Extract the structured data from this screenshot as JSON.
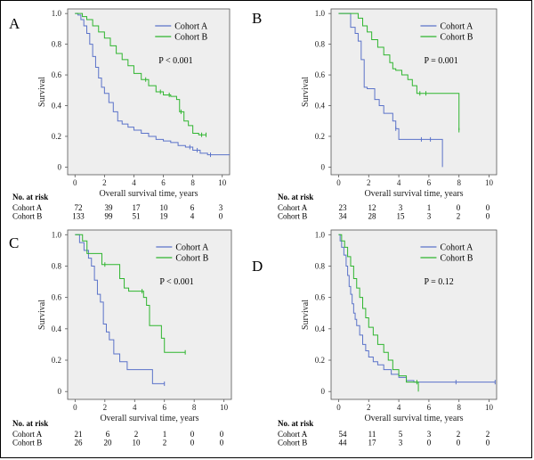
{
  "colors": {
    "cohort_a": "#5b73c9",
    "cohort_b": "#2fb52f",
    "plot_bg": "#eeeeee"
  },
  "risk_title": "No. at risk",
  "chart_data": [
    {
      "panel": "A",
      "type": "line",
      "xlabel": "Overall survival time, years",
      "ylabel": "Survival",
      "xlim": [
        -0.5,
        10.5
      ],
      "ylim": [
        -0.05,
        1.03
      ],
      "xticks": [
        0,
        2,
        4,
        6,
        8,
        10
      ],
      "yticks": [
        0,
        0.2,
        0.4,
        0.6,
        0.8,
        1.0
      ],
      "yticklabels": [
        "0",
        "0.2",
        "0.4",
        "0.6",
        "0.8",
        "1.0"
      ],
      "legend": [
        "Cohort A",
        "Cohort B"
      ],
      "pvalue": "P < 0.001",
      "series": [
        {
          "name": "Cohort A",
          "points": [
            [
              0,
              1
            ],
            [
              0.2,
              0.99
            ],
            [
              0.4,
              0.96
            ],
            [
              0.6,
              0.92
            ],
            [
              0.8,
              0.87
            ],
            [
              1.0,
              0.8
            ],
            [
              1.2,
              0.72
            ],
            [
              1.4,
              0.65
            ],
            [
              1.6,
              0.58
            ],
            [
              1.8,
              0.52
            ],
            [
              2.0,
              0.48
            ],
            [
              2.3,
              0.42
            ],
            [
              2.6,
              0.36
            ],
            [
              2.9,
              0.3
            ],
            [
              3.2,
              0.28
            ],
            [
              3.6,
              0.26
            ],
            [
              4.0,
              0.24
            ],
            [
              4.5,
              0.22
            ],
            [
              5.0,
              0.2
            ],
            [
              5.5,
              0.18
            ],
            [
              6.0,
              0.17
            ],
            [
              6.5,
              0.16
            ],
            [
              7.0,
              0.14
            ],
            [
              7.5,
              0.13
            ],
            [
              8.0,
              0.11
            ],
            [
              8.5,
              0.09
            ],
            [
              9.0,
              0.08
            ],
            [
              10.5,
              0.08
            ]
          ],
          "censored": [
            7.8,
            8.3,
            9.2
          ]
        },
        {
          "name": "Cohort B",
          "points": [
            [
              0,
              1
            ],
            [
              0.5,
              0.98
            ],
            [
              0.8,
              0.96
            ],
            [
              1.2,
              0.92
            ],
            [
              1.6,
              0.88
            ],
            [
              2.0,
              0.84
            ],
            [
              2.4,
              0.79
            ],
            [
              2.8,
              0.74
            ],
            [
              3.2,
              0.7
            ],
            [
              3.6,
              0.66
            ],
            [
              4.0,
              0.61
            ],
            [
              4.5,
              0.57
            ],
            [
              5.0,
              0.53
            ],
            [
              5.5,
              0.49
            ],
            [
              6.0,
              0.47
            ],
            [
              6.5,
              0.46
            ],
            [
              6.9,
              0.44
            ],
            [
              7.1,
              0.36
            ],
            [
              7.4,
              0.3
            ],
            [
              7.7,
              0.27
            ],
            [
              8.0,
              0.22
            ],
            [
              8.4,
              0.21
            ],
            [
              8.9,
              0.21
            ]
          ],
          "censored": [
            4.8,
            5.8,
            6.4,
            7.2,
            8.6,
            8.9
          ]
        }
      ],
      "risk_times": [
        "0",
        "2",
        "4",
        "6",
        "8",
        "10"
      ],
      "risk_table": [
        {
          "label": "Cohort A",
          "values": [
            "72",
            "39",
            "17",
            "10",
            "6",
            "3"
          ]
        },
        {
          "label": "Cohort B",
          "values": [
            "133",
            "99",
            "51",
            "19",
            "4",
            "0"
          ]
        }
      ]
    },
    {
      "panel": "B",
      "type": "line",
      "xlabel": "Overall survival time, years",
      "ylabel": "Survival",
      "xlim": [
        -0.5,
        10.5
      ],
      "ylim": [
        -0.05,
        1.03
      ],
      "xticks": [
        0,
        2,
        4,
        6,
        8,
        10
      ],
      "yticks": [
        0,
        0.2,
        0.4,
        0.6,
        0.8,
        1.0
      ],
      "yticklabels": [
        "0",
        "0.2",
        "0.4",
        "0.6",
        "0.8",
        "1.0"
      ],
      "legend": [
        "Cohort A",
        "Cohort B"
      ],
      "pvalue": "P = 0.001",
      "series": [
        {
          "name": "Cohort A",
          "points": [
            [
              0,
              1
            ],
            [
              0.6,
              1
            ],
            [
              0.8,
              0.91
            ],
            [
              1.1,
              0.87
            ],
            [
              1.3,
              0.82
            ],
            [
              1.5,
              0.7
            ],
            [
              1.7,
              0.52
            ],
            [
              1.9,
              0.51
            ],
            [
              2.2,
              0.51
            ],
            [
              2.4,
              0.44
            ],
            [
              2.7,
              0.4
            ],
            [
              3.0,
              0.35
            ],
            [
              3.3,
              0.35
            ],
            [
              3.6,
              0.3
            ],
            [
              3.8,
              0.25
            ],
            [
              4.0,
              0.18
            ],
            [
              5.0,
              0.18
            ],
            [
              6.0,
              0.18
            ],
            [
              6.8,
              0.18
            ],
            [
              6.9,
              0.0
            ]
          ],
          "censored": [
            3.8,
            5.5,
            6.1
          ]
        },
        {
          "name": "Cohort B",
          "points": [
            [
              0,
              1
            ],
            [
              1.0,
              1
            ],
            [
              1.3,
              0.97
            ],
            [
              1.6,
              0.92
            ],
            [
              1.9,
              0.88
            ],
            [
              2.2,
              0.83
            ],
            [
              2.6,
              0.78
            ],
            [
              3.0,
              0.73
            ],
            [
              3.4,
              0.68
            ],
            [
              3.6,
              0.64
            ],
            [
              3.8,
              0.63
            ],
            [
              4.2,
              0.6
            ],
            [
              4.6,
              0.57
            ],
            [
              4.9,
              0.53
            ],
            [
              5.2,
              0.48
            ],
            [
              5.6,
              0.48
            ],
            [
              6.4,
              0.48
            ],
            [
              8.0,
              0.48
            ],
            [
              8.0,
              0.24
            ]
          ],
          "censored": [
            5.4,
            5.8,
            8.0
          ]
        }
      ],
      "risk_times": [
        "0",
        "2",
        "4",
        "6",
        "8",
        "10"
      ],
      "risk_table": [
        {
          "label": "Cohort A",
          "values": [
            "23",
            "12",
            "3",
            "1",
            "0",
            "0"
          ]
        },
        {
          "label": "Cohort B",
          "values": [
            "34",
            "28",
            "15",
            "3",
            "2",
            "0"
          ]
        }
      ]
    },
    {
      "panel": "C",
      "type": "line",
      "xlabel": "Overall survival time, years",
      "ylabel": "Survival",
      "xlim": [
        -0.5,
        10.5
      ],
      "ylim": [
        -0.05,
        1.03
      ],
      "xticks": [
        0,
        2,
        4,
        6,
        8,
        10
      ],
      "yticks": [
        0,
        0.2,
        0.4,
        0.6,
        0.8,
        1.0
      ],
      "yticklabels": [
        "0",
        "0.2",
        "0.4",
        "0.6",
        "0.8",
        "1.0"
      ],
      "legend": [
        "Cohort A",
        "Cohort B"
      ],
      "pvalue": "P < 0.001",
      "series": [
        {
          "name": "Cohort A",
          "points": [
            [
              0,
              1
            ],
            [
              0.3,
              0.95
            ],
            [
              0.6,
              0.9
            ],
            [
              0.9,
              0.85
            ],
            [
              1.1,
              0.8
            ],
            [
              1.3,
              0.71
            ],
            [
              1.5,
              0.62
            ],
            [
              1.7,
              0.57
            ],
            [
              1.9,
              0.43
            ],
            [
              2.1,
              0.38
            ],
            [
              2.3,
              0.33
            ],
            [
              2.6,
              0.24
            ],
            [
              3.0,
              0.19
            ],
            [
              3.5,
              0.14
            ],
            [
              5.0,
              0.14
            ],
            [
              5.2,
              0.05
            ],
            [
              6.0,
              0.05
            ]
          ],
          "censored": [
            6.0
          ]
        },
        {
          "name": "Cohort B",
          "points": [
            [
              0,
              1
            ],
            [
              0.5,
              0.96
            ],
            [
              0.8,
              0.88
            ],
            [
              1.6,
              0.88
            ],
            [
              1.8,
              0.81
            ],
            [
              2.8,
              0.81
            ],
            [
              3.0,
              0.72
            ],
            [
              3.3,
              0.66
            ],
            [
              3.6,
              0.64
            ],
            [
              4.2,
              0.64
            ],
            [
              4.6,
              0.6
            ],
            [
              4.8,
              0.55
            ],
            [
              5.0,
              0.42
            ],
            [
              5.6,
              0.42
            ],
            [
              5.8,
              0.34
            ],
            [
              6.0,
              0.25
            ],
            [
              7.4,
              0.25
            ]
          ],
          "censored": [
            2.0,
            4.5,
            7.4
          ]
        }
      ],
      "risk_times": [
        "0",
        "2",
        "4",
        "6",
        "8",
        "10"
      ],
      "risk_table": [
        {
          "label": "Cohort A",
          "values": [
            "21",
            "6",
            "2",
            "1",
            "0",
            "0"
          ]
        },
        {
          "label": "Cohort B",
          "values": [
            "26",
            "20",
            "10",
            "2",
            "0",
            "0"
          ]
        }
      ]
    },
    {
      "panel": "D",
      "type": "line",
      "xlabel": "Overall survival time, years",
      "ylabel": "Survival",
      "xlim": [
        -0.5,
        10.5
      ],
      "ylim": [
        -0.05,
        1.03
      ],
      "xticks": [
        0,
        2,
        4,
        6,
        8,
        10
      ],
      "yticks": [
        0,
        0.2,
        0.4,
        0.6,
        0.8,
        1.0
      ],
      "yticklabels": [
        "0",
        "0.2",
        "0.4",
        "0.6",
        "0.8",
        "1.0"
      ],
      "legend": [
        "Cohort A",
        "Cohort B"
      ],
      "pvalue": "P = 0.12",
      "series": [
        {
          "name": "Cohort A",
          "points": [
            [
              0,
              1
            ],
            [
              0.1,
              0.96
            ],
            [
              0.2,
              0.92
            ],
            [
              0.35,
              0.87
            ],
            [
              0.5,
              0.8
            ],
            [
              0.6,
              0.74
            ],
            [
              0.7,
              0.67
            ],
            [
              0.8,
              0.62
            ],
            [
              0.9,
              0.56
            ],
            [
              1.0,
              0.5
            ],
            [
              1.1,
              0.46
            ],
            [
              1.2,
              0.42
            ],
            [
              1.4,
              0.36
            ],
            [
              1.6,
              0.3
            ],
            [
              1.8,
              0.26
            ],
            [
              2.0,
              0.22
            ],
            [
              2.3,
              0.19
            ],
            [
              2.6,
              0.17
            ],
            [
              3.0,
              0.14
            ],
            [
              3.5,
              0.11
            ],
            [
              4.0,
              0.09
            ],
            [
              4.5,
              0.07
            ],
            [
              5.0,
              0.06
            ],
            [
              10.4,
              0.06
            ]
          ],
          "censored": [
            7.8,
            10.4
          ]
        },
        {
          "name": "Cohort B",
          "points": [
            [
              0,
              1
            ],
            [
              0.2,
              0.96
            ],
            [
              0.4,
              0.92
            ],
            [
              0.6,
              0.86
            ],
            [
              0.8,
              0.8
            ],
            [
              1.0,
              0.72
            ],
            [
              1.2,
              0.66
            ],
            [
              1.4,
              0.6
            ],
            [
              1.6,
              0.53
            ],
            [
              1.8,
              0.47
            ],
            [
              2.0,
              0.41
            ],
            [
              2.3,
              0.36
            ],
            [
              2.6,
              0.3
            ],
            [
              3.0,
              0.25
            ],
            [
              3.3,
              0.2
            ],
            [
              3.6,
              0.14
            ],
            [
              4.0,
              0.1
            ],
            [
              4.5,
              0.06
            ],
            [
              5.2,
              0.06
            ],
            [
              5.3,
              0.0
            ]
          ],
          "censored": [
            5.2
          ]
        }
      ],
      "risk_times": [
        "0",
        "2",
        "4",
        "6",
        "8",
        "10"
      ],
      "risk_table": [
        {
          "label": "Cohort A",
          "values": [
            "54",
            "11",
            "5",
            "3",
            "2",
            "2"
          ]
        },
        {
          "label": "Cohort B",
          "values": [
            "44",
            "17",
            "3",
            "0",
            "0",
            "0"
          ]
        }
      ]
    }
  ]
}
